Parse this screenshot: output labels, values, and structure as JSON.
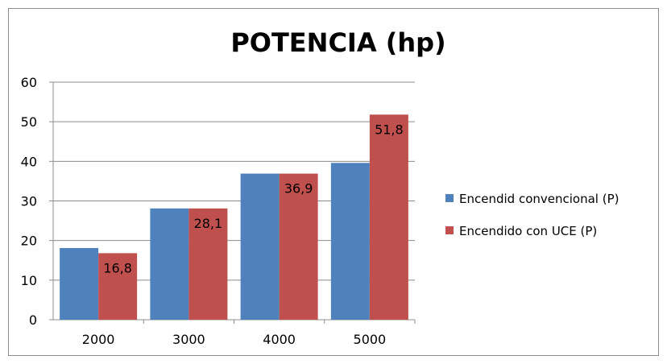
{
  "chart_data": {
    "type": "bar",
    "title": "POTENCIA (hp)",
    "xlabel": "",
    "ylabel": "",
    "categories": [
      "2000",
      "3000",
      "4000",
      "5000"
    ],
    "series": [
      {
        "name": "Encendid convencional (P)",
        "color": "#4f81bd",
        "values": [
          18.1,
          28.1,
          36.9,
          39.6
        ],
        "data_labels": false
      },
      {
        "name": "Encendido con UCE (P)",
        "color": "#c0504d",
        "values": [
          16.8,
          28.1,
          36.9,
          51.8
        ],
        "data_labels": true,
        "label_text": [
          "16,8",
          "28,1",
          "36,9",
          "51,8"
        ]
      }
    ],
    "ylim": [
      0,
      60
    ],
    "yticks": [
      0,
      10,
      20,
      30,
      40,
      50,
      60
    ],
    "grid": true,
    "legend_position": "right"
  }
}
